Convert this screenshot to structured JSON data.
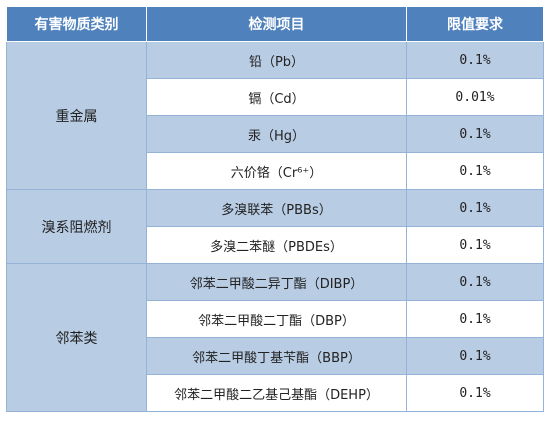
{
  "table": {
    "headers": [
      "有害物质类别",
      "检测项目",
      "限值要求"
    ],
    "groups": [
      {
        "category": "重金属",
        "rows": [
          {
            "item": "铅（Pb）",
            "limit": "0.1%"
          },
          {
            "item": "镉（Cd）",
            "limit": "0.01%"
          },
          {
            "item": "汞（Hg）",
            "limit": "0.1%"
          },
          {
            "item": "六价铬（Cr⁶⁺）",
            "limit": "0.1%"
          }
        ]
      },
      {
        "category": "溴系阻燃剂",
        "rows": [
          {
            "item": "多溴联苯（PBBs）",
            "limit": "0.1%"
          },
          {
            "item": "多溴二苯醚（PBDEs）",
            "limit": "0.1%"
          }
        ]
      },
      {
        "category": "邻苯类",
        "rows": [
          {
            "item": "邻苯二甲酸二异丁酯（DIBP）",
            "limit": "0.1%"
          },
          {
            "item": "邻苯二甲酸二丁酯（DBP）",
            "limit": "0.1%"
          },
          {
            "item": "邻苯二甲酸丁基苄酯（BBP）",
            "limit": "0.1%"
          },
          {
            "item": "邻苯二甲酸二乙基己基酯（DEHP）",
            "limit": "0.1%"
          }
        ]
      }
    ]
  }
}
